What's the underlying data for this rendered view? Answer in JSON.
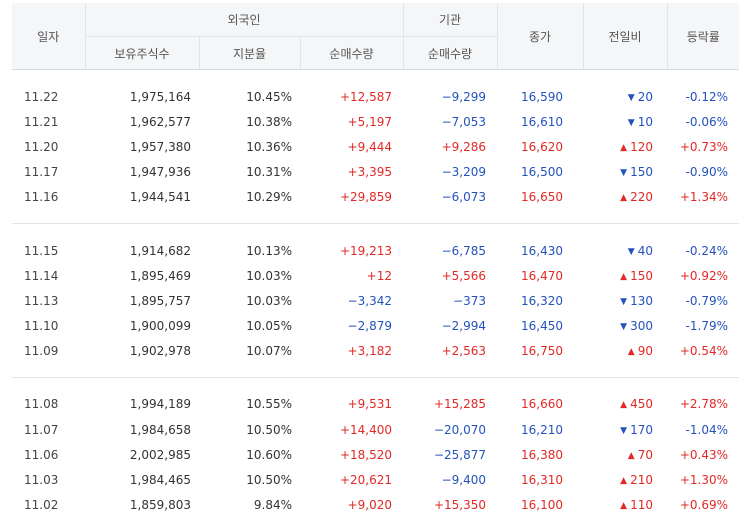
{
  "header": {
    "date": "일자",
    "foreign": "외국인",
    "institution": "기관",
    "close": "종가",
    "diff": "전일비",
    "rate": "등락률",
    "holdings": "보유주식수",
    "ratio": "지분율",
    "foreign_net": "순매수량",
    "inst_net": "순매수량"
  },
  "groups": [
    {
      "rows": [
        {
          "date": "11.22",
          "holdings": "1,975,164",
          "ratio": "10.45%",
          "foreign_net": "+12,587",
          "foreign_dir": "up",
          "inst_net": "−9,299",
          "inst_dir": "dn",
          "close": "16,590",
          "close_dir": "dn",
          "diff": "20",
          "diff_dir": "dn",
          "rate": "-0.12%",
          "rate_dir": "dn"
        },
        {
          "date": "11.21",
          "holdings": "1,962,577",
          "ratio": "10.38%",
          "foreign_net": "+5,197",
          "foreign_dir": "up",
          "inst_net": "−7,053",
          "inst_dir": "dn",
          "close": "16,610",
          "close_dir": "dn",
          "diff": "10",
          "diff_dir": "dn",
          "rate": "-0.06%",
          "rate_dir": "dn"
        },
        {
          "date": "11.20",
          "holdings": "1,957,380",
          "ratio": "10.36%",
          "foreign_net": "+9,444",
          "foreign_dir": "up",
          "inst_net": "+9,286",
          "inst_dir": "up",
          "close": "16,620",
          "close_dir": "up",
          "diff": "120",
          "diff_dir": "up",
          "rate": "+0.73%",
          "rate_dir": "up"
        },
        {
          "date": "11.17",
          "holdings": "1,947,936",
          "ratio": "10.31%",
          "foreign_net": "+3,395",
          "foreign_dir": "up",
          "inst_net": "−3,209",
          "inst_dir": "dn",
          "close": "16,500",
          "close_dir": "dn",
          "diff": "150",
          "diff_dir": "dn",
          "rate": "-0.90%",
          "rate_dir": "dn"
        },
        {
          "date": "11.16",
          "holdings": "1,944,541",
          "ratio": "10.29%",
          "foreign_net": "+29,859",
          "foreign_dir": "up",
          "inst_net": "−6,073",
          "inst_dir": "dn",
          "close": "16,650",
          "close_dir": "up",
          "diff": "220",
          "diff_dir": "up",
          "rate": "+1.34%",
          "rate_dir": "up"
        }
      ]
    },
    {
      "rows": [
        {
          "date": "11.15",
          "holdings": "1,914,682",
          "ratio": "10.13%",
          "foreign_net": "+19,213",
          "foreign_dir": "up",
          "inst_net": "−6,785",
          "inst_dir": "dn",
          "close": "16,430",
          "close_dir": "dn",
          "diff": "40",
          "diff_dir": "dn",
          "rate": "-0.24%",
          "rate_dir": "dn"
        },
        {
          "date": "11.14",
          "holdings": "1,895,469",
          "ratio": "10.03%",
          "foreign_net": "+12",
          "foreign_dir": "up",
          "inst_net": "+5,566",
          "inst_dir": "up",
          "close": "16,470",
          "close_dir": "up",
          "diff": "150",
          "diff_dir": "up",
          "rate": "+0.92%",
          "rate_dir": "up"
        },
        {
          "date": "11.13",
          "holdings": "1,895,757",
          "ratio": "10.03%",
          "foreign_net": "−3,342",
          "foreign_dir": "dn",
          "inst_net": "−373",
          "inst_dir": "dn",
          "close": "16,320",
          "close_dir": "dn",
          "diff": "130",
          "diff_dir": "dn",
          "rate": "-0.79%",
          "rate_dir": "dn"
        },
        {
          "date": "11.10",
          "holdings": "1,900,099",
          "ratio": "10.05%",
          "foreign_net": "−2,879",
          "foreign_dir": "dn",
          "inst_net": "−2,994",
          "inst_dir": "dn",
          "close": "16,450",
          "close_dir": "dn",
          "diff": "300",
          "diff_dir": "dn",
          "rate": "-1.79%",
          "rate_dir": "dn"
        },
        {
          "date": "11.09",
          "holdings": "1,902,978",
          "ratio": "10.07%",
          "foreign_net": "+3,182",
          "foreign_dir": "up",
          "inst_net": "+2,563",
          "inst_dir": "up",
          "close": "16,750",
          "close_dir": "up",
          "diff": "90",
          "diff_dir": "up",
          "rate": "+0.54%",
          "rate_dir": "up"
        }
      ]
    },
    {
      "rows": [
        {
          "date": "11.08",
          "holdings": "1,994,189",
          "ratio": "10.55%",
          "foreign_net": "+9,531",
          "foreign_dir": "up",
          "inst_net": "+15,285",
          "inst_dir": "up",
          "close": "16,660",
          "close_dir": "up",
          "diff": "450",
          "diff_dir": "up",
          "rate": "+2.78%",
          "rate_dir": "up"
        },
        {
          "date": "11.07",
          "holdings": "1,984,658",
          "ratio": "10.50%",
          "foreign_net": "+14,400",
          "foreign_dir": "up",
          "inst_net": "−20,070",
          "inst_dir": "dn",
          "close": "16,210",
          "close_dir": "dn",
          "diff": "170",
          "diff_dir": "dn",
          "rate": "-1.04%",
          "rate_dir": "dn"
        },
        {
          "date": "11.06",
          "holdings": "2,002,985",
          "ratio": "10.60%",
          "foreign_net": "+18,520",
          "foreign_dir": "up",
          "inst_net": "−25,877",
          "inst_dir": "dn",
          "close": "16,380",
          "close_dir": "up",
          "diff": "70",
          "diff_dir": "up",
          "rate": "+0.43%",
          "rate_dir": "up"
        },
        {
          "date": "11.03",
          "holdings": "1,984,465",
          "ratio": "10.50%",
          "foreign_net": "+20,621",
          "foreign_dir": "up",
          "inst_net": "−9,400",
          "inst_dir": "dn",
          "close": "16,310",
          "close_dir": "up",
          "diff": "210",
          "diff_dir": "up",
          "rate": "+1.30%",
          "rate_dir": "up"
        },
        {
          "date": "11.02",
          "holdings": "1,859,803",
          "ratio": "9.84%",
          "foreign_net": "+9,020",
          "foreign_dir": "up",
          "inst_net": "+15,350",
          "inst_dir": "up",
          "close": "16,100",
          "close_dir": "up",
          "diff": "110",
          "diff_dir": "up",
          "rate": "+0.69%",
          "rate_dir": "up"
        }
      ]
    }
  ],
  "icons": {
    "up": "triangle-up-icon",
    "dn": "triangle-down-icon"
  },
  "colors": {
    "up": "#e22926",
    "dn": "#2452bd",
    "header_bg": "#f5f6f8"
  }
}
